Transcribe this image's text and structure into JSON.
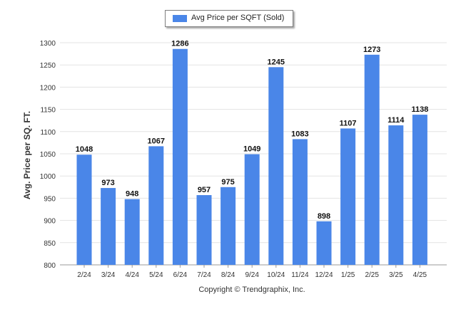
{
  "chart_data": {
    "type": "bar",
    "categories": [
      "2/24",
      "3/24",
      "4/24",
      "5/24",
      "6/24",
      "7/24",
      "8/24",
      "9/24",
      "10/24",
      "11/24",
      "12/24",
      "1/25",
      "2/25",
      "3/25",
      "4/25"
    ],
    "series": [
      {
        "name": "Avg Price per SQFT (Sold)",
        "values": [
          1048,
          973,
          948,
          1067,
          1286,
          957,
          975,
          1049,
          1245,
          1083,
          898,
          1107,
          1273,
          1114,
          1138
        ]
      }
    ],
    "ylabel": "Avg. Price per SQ. FT.",
    "xlabel": "",
    "ylim": [
      800,
      1300
    ],
    "yticks": [
      "800",
      "850",
      "900",
      "950",
      "1000",
      "1050",
      "1100",
      "1150",
      "1200",
      "1250",
      "1300"
    ],
    "grid": true,
    "legend": "top-center",
    "bar_color": "#4a86e8"
  },
  "footer": {
    "copyright": "Copyright © Trendgraphix, Inc."
  }
}
